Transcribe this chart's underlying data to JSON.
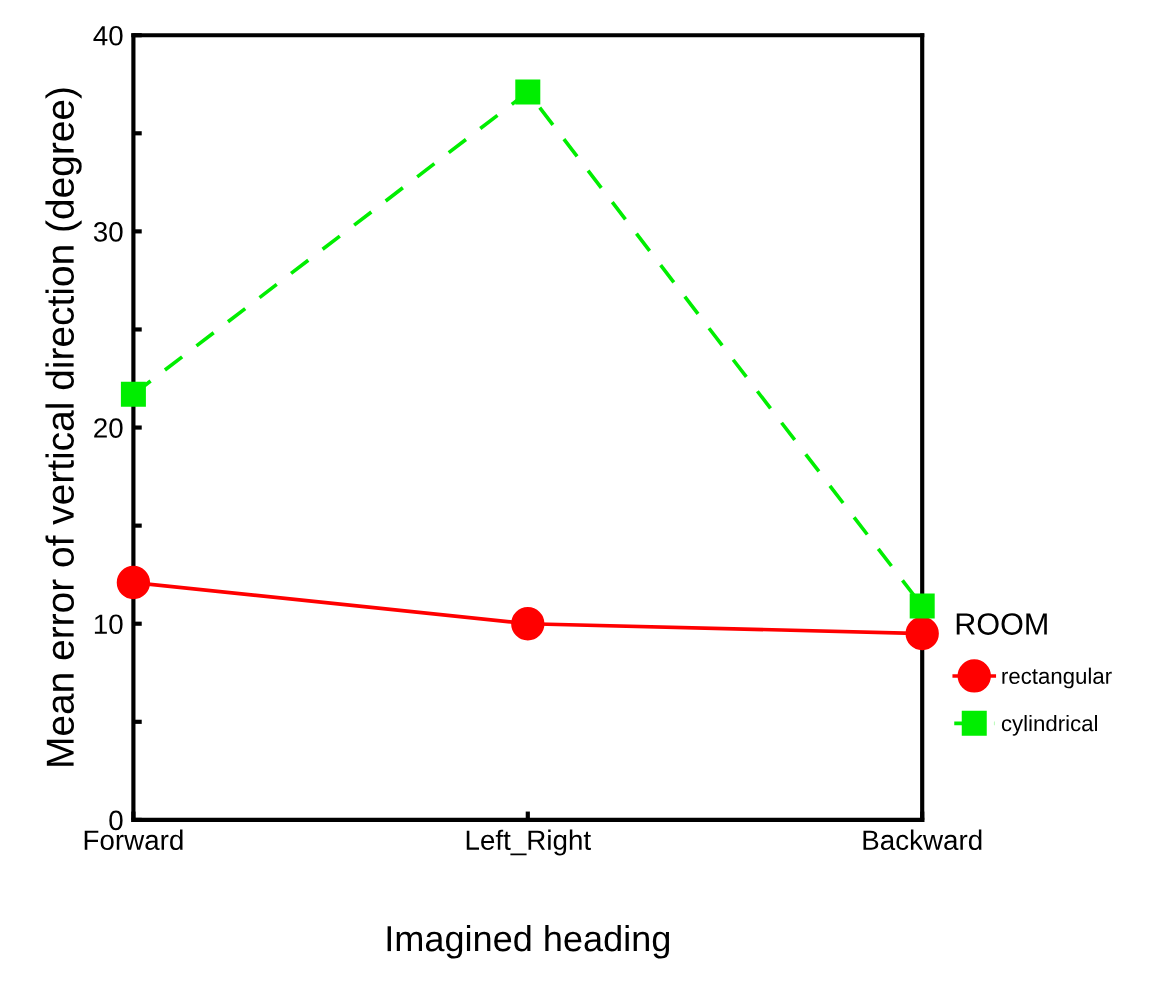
{
  "chart_data": {
    "type": "line",
    "xlabel": "Imagined heading",
    "ylabel": "Mean error of vertical direction (degree)",
    "legend_title": "ROOM",
    "categories": [
      "Forward",
      "Left_Right",
      "Backward"
    ],
    "series": [
      {
        "name": "rectangular",
        "color": "#ff0000",
        "values": [
          12.1,
          10.0,
          9.5
        ],
        "marker": "circle",
        "line_style": "solid"
      },
      {
        "name": "cylindrical",
        "color": "#00ee00",
        "values": [
          21.7,
          37.1,
          10.9
        ],
        "marker": "square",
        "line_style": "dashed"
      }
    ],
    "ylim": [
      0,
      40
    ],
    "yticks": [
      0,
      {
        "value": 5,
        "label": null
      },
      10,
      {
        "value": 15,
        "label": null
      },
      20,
      {
        "value": 25,
        "label": null
      },
      30,
      {
        "value": 35,
        "label": null
      },
      40
    ],
    "grid": false,
    "legend": "right"
  }
}
